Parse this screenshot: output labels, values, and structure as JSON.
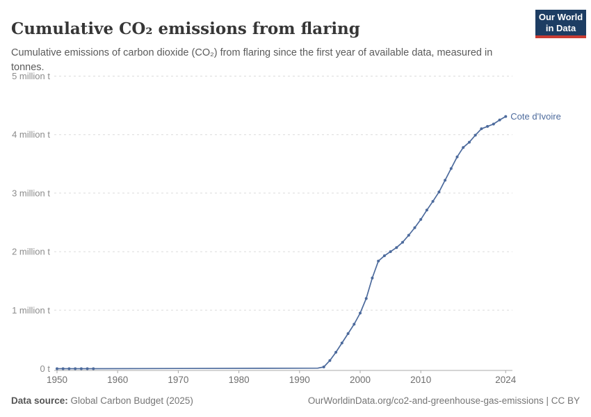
{
  "header": {
    "title": "Cumulative CO₂ emissions from flaring",
    "subtitle": "Cumulative emissions of carbon dioxide (CO₂) from flaring since the first year of available data, measured in tonnes.",
    "logo": {
      "line1": "Our World",
      "line2": "in Data",
      "bg_color": "#1d3d63",
      "accent_color": "#c93c32"
    }
  },
  "footer": {
    "datasource_label": "Data source:",
    "datasource_value": " Global Carbon Budget (2025)",
    "attribution": "OurWorldinData.org/co2-and-greenhouse-gas-emissions | CC BY"
  },
  "chart_data": {
    "type": "line",
    "title": "Cumulative CO₂ emissions from flaring",
    "xlabel": "",
    "ylabel": "",
    "unit": "t",
    "xlim": [
      1948,
      2025
    ],
    "ylim": [
      0,
      5000000
    ],
    "grid": "horizontal-dashed",
    "legend": "end-of-line-label",
    "x_ticks": [
      1950,
      1960,
      1970,
      1980,
      1990,
      2000,
      2010,
      2024
    ],
    "y_ticks": [
      {
        "value": 0,
        "label": "0 t"
      },
      {
        "value": 1000000,
        "label": "1 million t"
      },
      {
        "value": 2000000,
        "label": "2 million t"
      },
      {
        "value": 3000000,
        "label": "3 million t"
      },
      {
        "value": 4000000,
        "label": "4 million t"
      },
      {
        "value": 5000000,
        "label": "5 million t"
      }
    ],
    "series": [
      {
        "name": "Cote d'Ivoire",
        "color": "#4C6A9C",
        "marker_years": [
          1950,
          1951,
          1952,
          1953,
          1954,
          1955,
          1956,
          1994,
          1995,
          1996,
          1997,
          1998,
          1999,
          2000,
          2001,
          2002,
          2003,
          2004,
          2005,
          2006,
          2007,
          2008,
          2009,
          2010,
          2011,
          2012,
          2013,
          2014,
          2015,
          2016,
          2017,
          2018,
          2019,
          2020,
          2021,
          2022,
          2023,
          2024
        ],
        "points": [
          [
            1950,
            0
          ],
          [
            1951,
            0
          ],
          [
            1952,
            0
          ],
          [
            1953,
            0
          ],
          [
            1954,
            0
          ],
          [
            1955,
            0
          ],
          [
            1956,
            0
          ],
          [
            1993,
            10000
          ],
          [
            1994,
            30000
          ],
          [
            1995,
            140000
          ],
          [
            1996,
            280000
          ],
          [
            1997,
            440000
          ],
          [
            1998,
            600000
          ],
          [
            1999,
            760000
          ],
          [
            2000,
            950000
          ],
          [
            2001,
            1200000
          ],
          [
            2002,
            1550000
          ],
          [
            2003,
            1840000
          ],
          [
            2004,
            1930000
          ],
          [
            2005,
            2000000
          ],
          [
            2006,
            2070000
          ],
          [
            2007,
            2160000
          ],
          [
            2008,
            2280000
          ],
          [
            2009,
            2410000
          ],
          [
            2010,
            2550000
          ],
          [
            2011,
            2710000
          ],
          [
            2012,
            2860000
          ],
          [
            2013,
            3020000
          ],
          [
            2014,
            3220000
          ],
          [
            2015,
            3420000
          ],
          [
            2016,
            3620000
          ],
          [
            2017,
            3780000
          ],
          [
            2018,
            3870000
          ],
          [
            2019,
            3990000
          ],
          [
            2020,
            4100000
          ],
          [
            2021,
            4140000
          ],
          [
            2022,
            4180000
          ],
          [
            2023,
            4250000
          ],
          [
            2024,
            4310000
          ]
        ]
      }
    ],
    "style": {
      "gridline_color": "#dbdbdb",
      "axis_color": "#a8a8a8",
      "y_label_color": "#8c8c8c",
      "x_label_color": "#6e6e6e"
    }
  }
}
